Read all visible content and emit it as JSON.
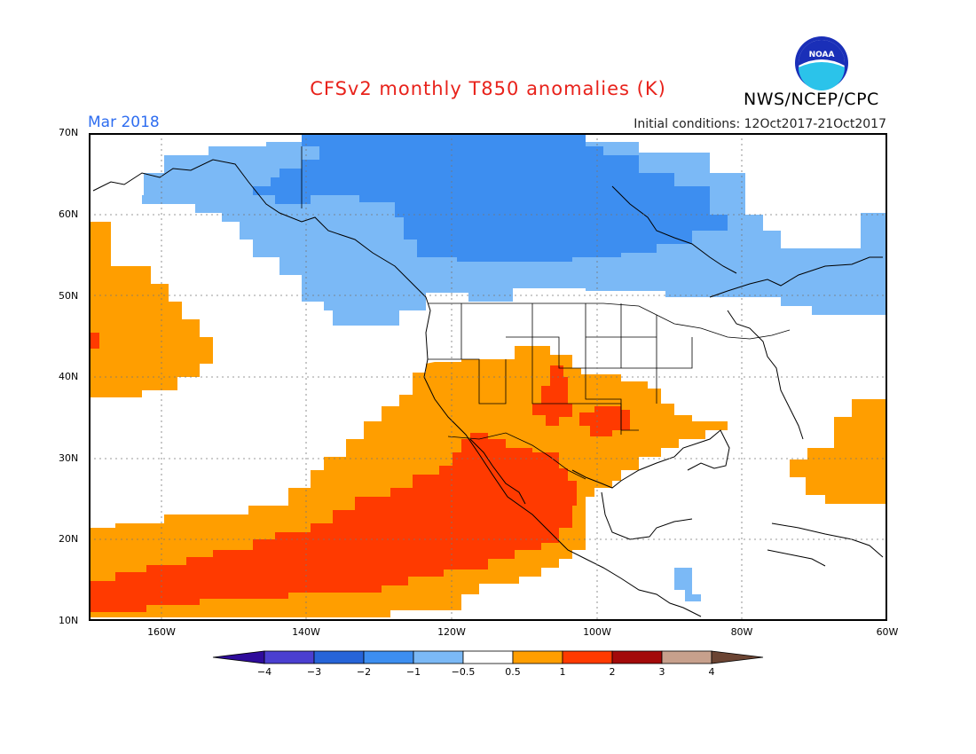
{
  "title": "CFSv2 monthly T850 anomalies (K)",
  "agency": "NWS/NCEP/CPC",
  "logo_text": "NOAA",
  "period": "Mar 2018",
  "initial_conditions": "Initial conditions: 12Oct2017-21Oct2017",
  "lat_labels": [
    "70N",
    "60N",
    "50N",
    "40N",
    "30N",
    "20N",
    "10N"
  ],
  "lon_labels": [
    "160W",
    "140W",
    "120W",
    "100W",
    "80W",
    "60W"
  ],
  "colorbar": {
    "labels": [
      "−4",
      "−3",
      "−2",
      "−1",
      "−0.5",
      "0.5",
      "1",
      "2",
      "3",
      "4"
    ],
    "colors": [
      "#2f0c9b",
      "#4b3fd0",
      "#2664d8",
      "#3d8ef0",
      "#7bb9f6",
      "#ffffff",
      "#ff9e00",
      "#ff3a00",
      "#a30a0a",
      "#c7a08c",
      "#6b4433"
    ]
  },
  "anomaly_colors": {
    "cold_moderate": "#3d8ef0",
    "cold_weak": "#7bb9f6",
    "warm_weak": "#ff9e00",
    "warm_moderate": "#ff3a00"
  }
}
